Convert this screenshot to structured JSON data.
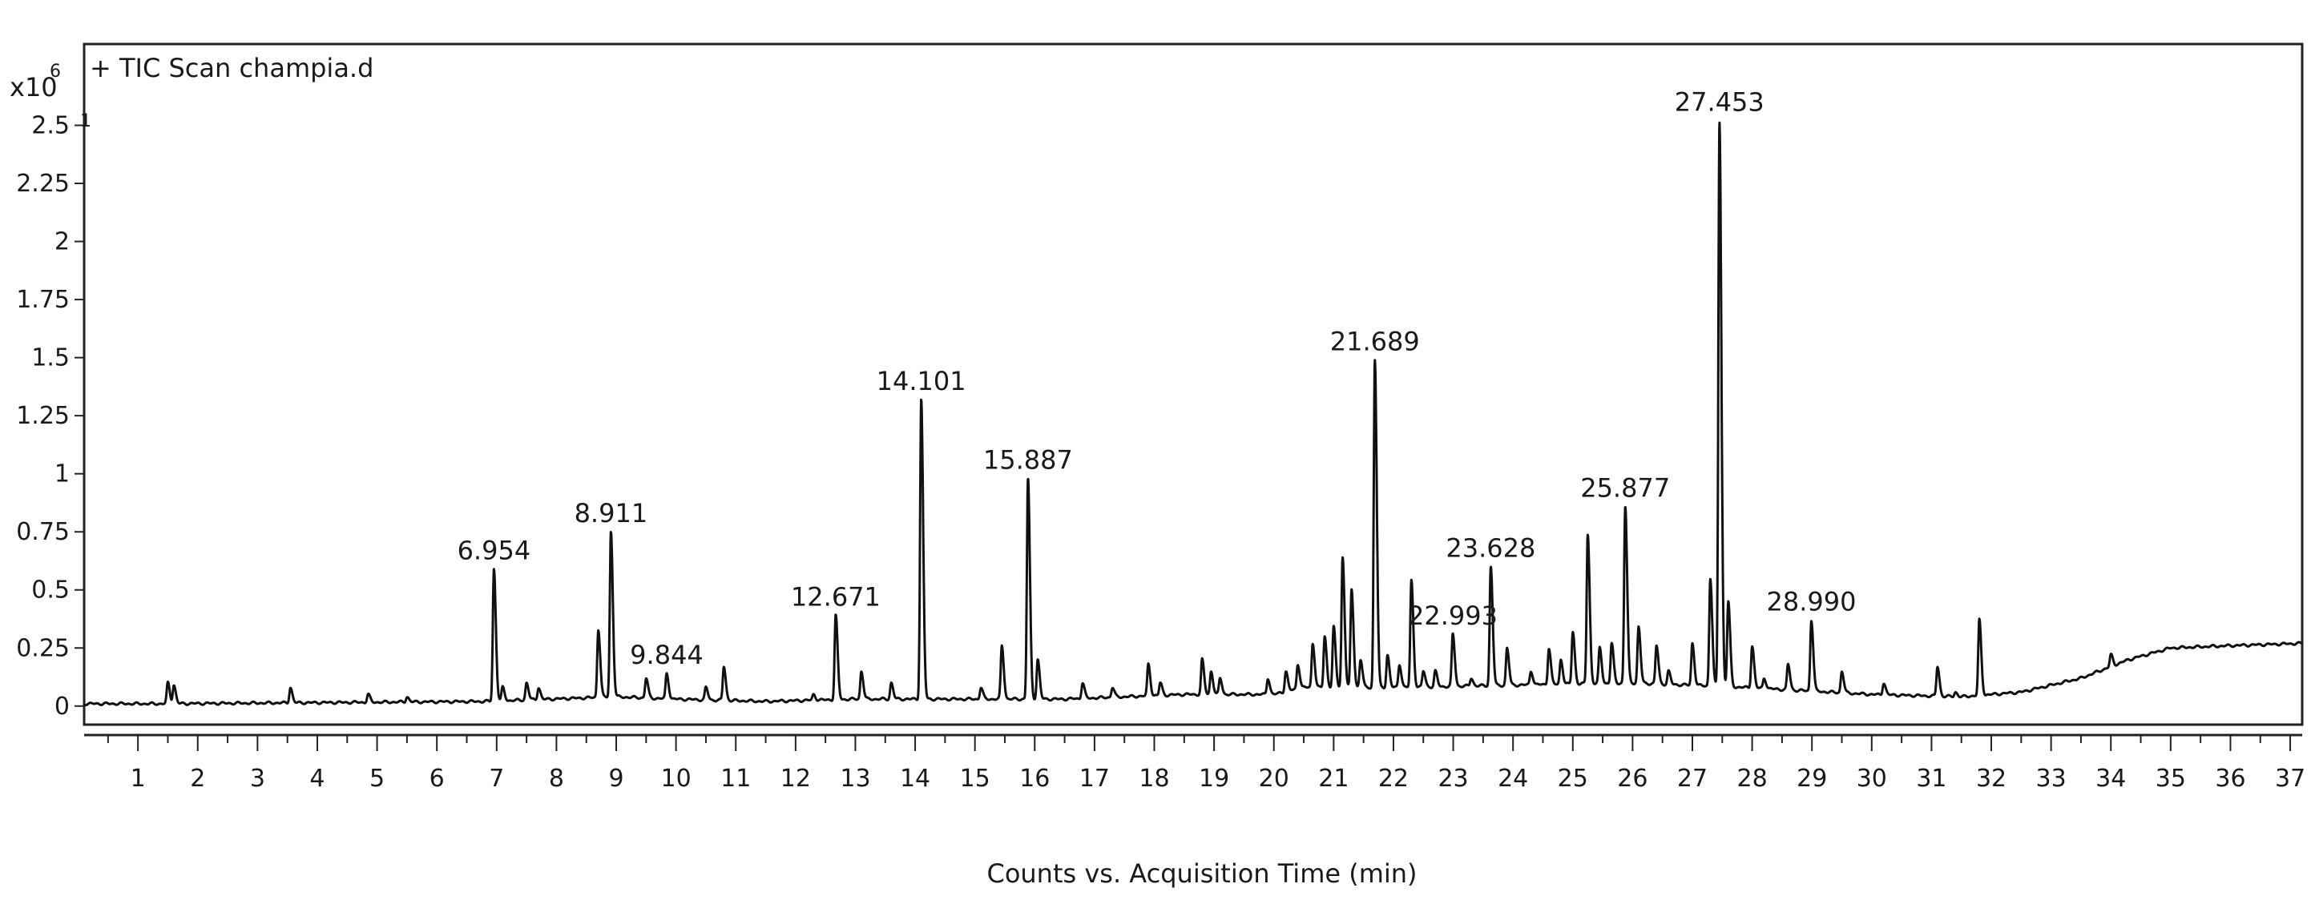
{
  "chart_data": {
    "type": "line",
    "title": "+ TIC Scan champia.d",
    "xlabel": "Counts vs. Acquisition Time (min)",
    "y_multiplier": {
      "base": "x10",
      "exponent": "6",
      "sub": "1"
    },
    "xlim": [
      0.1,
      37.2
    ],
    "ylim": [
      -0.08,
      2.85
    ],
    "x_ticks": [
      1,
      2,
      3,
      4,
      5,
      6,
      7,
      8,
      9,
      10,
      11,
      12,
      13,
      14,
      15,
      16,
      17,
      18,
      19,
      20,
      21,
      22,
      23,
      24,
      25,
      26,
      27,
      28,
      29,
      30,
      31,
      32,
      33,
      34,
      35,
      36,
      37
    ],
    "y_ticks": [
      0,
      0.25,
      0.5,
      0.75,
      1,
      1.25,
      1.5,
      1.75,
      2,
      2.25,
      2.5
    ],
    "y_tick_labels": [
      "0",
      "0.25",
      "0.5",
      "0.75",
      "1",
      "1.25",
      "1.5",
      "1.75",
      "2",
      "2.25",
      "2.5"
    ],
    "baseline": [
      [
        0.1,
        0.01
      ],
      [
        1.4,
        0.01
      ],
      [
        6.8,
        0.02
      ],
      [
        9.0,
        0.04
      ],
      [
        10.0,
        0.03
      ],
      [
        11.5,
        0.02
      ],
      [
        13.0,
        0.03
      ],
      [
        16.5,
        0.03
      ],
      [
        18.5,
        0.05
      ],
      [
        20.0,
        0.05
      ],
      [
        20.5,
        0.08
      ],
      [
        22.0,
        0.08
      ],
      [
        24.0,
        0.09
      ],
      [
        26.0,
        0.1
      ],
      [
        27.9,
        0.08
      ],
      [
        30.0,
        0.05
      ],
      [
        31.5,
        0.04
      ],
      [
        32.5,
        0.06
      ],
      [
        33.5,
        0.12
      ],
      [
        34.3,
        0.2
      ],
      [
        35.0,
        0.25
      ],
      [
        36.0,
        0.26
      ],
      [
        37.2,
        0.27
      ]
    ],
    "peaks": [
      {
        "t": 1.5,
        "h": 0.1
      },
      {
        "t": 1.6,
        "h": 0.09
      },
      {
        "t": 3.55,
        "h": 0.08
      },
      {
        "t": 4.85,
        "h": 0.05
      },
      {
        "t": 5.5,
        "h": 0.04
      },
      {
        "t": 6.954,
        "h": 0.59
      },
      {
        "t": 7.1,
        "h": 0.08
      },
      {
        "t": 7.5,
        "h": 0.1
      },
      {
        "t": 7.7,
        "h": 0.08
      },
      {
        "t": 8.7,
        "h": 0.33
      },
      {
        "t": 8.911,
        "h": 0.75
      },
      {
        "t": 9.5,
        "h": 0.12
      },
      {
        "t": 9.844,
        "h": 0.14
      },
      {
        "t": 10.5,
        "h": 0.08
      },
      {
        "t": 10.8,
        "h": 0.17
      },
      {
        "t": 12.3,
        "h": 0.05
      },
      {
        "t": 12.671,
        "h": 0.39
      },
      {
        "t": 13.1,
        "h": 0.15
      },
      {
        "t": 13.6,
        "h": 0.1
      },
      {
        "t": 14.101,
        "h": 1.32
      },
      {
        "t": 15.1,
        "h": 0.08
      },
      {
        "t": 15.45,
        "h": 0.26
      },
      {
        "t": 15.887,
        "h": 0.98
      },
      {
        "t": 16.05,
        "h": 0.2
      },
      {
        "t": 16.8,
        "h": 0.1
      },
      {
        "t": 17.3,
        "h": 0.08
      },
      {
        "t": 17.9,
        "h": 0.18
      },
      {
        "t": 18.1,
        "h": 0.1
      },
      {
        "t": 18.8,
        "h": 0.2
      },
      {
        "t": 18.95,
        "h": 0.15
      },
      {
        "t": 19.1,
        "h": 0.12
      },
      {
        "t": 19.9,
        "h": 0.12
      },
      {
        "t": 20.2,
        "h": 0.15
      },
      {
        "t": 20.4,
        "h": 0.18
      },
      {
        "t": 20.65,
        "h": 0.27
      },
      {
        "t": 20.85,
        "h": 0.3
      },
      {
        "t": 21.0,
        "h": 0.34
      },
      {
        "t": 21.15,
        "h": 0.64
      },
      {
        "t": 21.3,
        "h": 0.5
      },
      {
        "t": 21.45,
        "h": 0.2
      },
      {
        "t": 21.689,
        "h": 1.49
      },
      {
        "t": 21.9,
        "h": 0.22
      },
      {
        "t": 22.1,
        "h": 0.18
      },
      {
        "t": 22.3,
        "h": 0.54
      },
      {
        "t": 22.5,
        "h": 0.15
      },
      {
        "t": 22.7,
        "h": 0.15
      },
      {
        "t": 22.993,
        "h": 0.31
      },
      {
        "t": 23.3,
        "h": 0.12
      },
      {
        "t": 23.628,
        "h": 0.6
      },
      {
        "t": 23.9,
        "h": 0.25
      },
      {
        "t": 24.3,
        "h": 0.15
      },
      {
        "t": 24.6,
        "h": 0.25
      },
      {
        "t": 24.8,
        "h": 0.2
      },
      {
        "t": 25.0,
        "h": 0.32
      },
      {
        "t": 25.25,
        "h": 0.74
      },
      {
        "t": 25.45,
        "h": 0.25
      },
      {
        "t": 25.65,
        "h": 0.27
      },
      {
        "t": 25.877,
        "h": 0.86
      },
      {
        "t": 26.1,
        "h": 0.34
      },
      {
        "t": 26.4,
        "h": 0.26
      },
      {
        "t": 26.6,
        "h": 0.15
      },
      {
        "t": 27.0,
        "h": 0.27
      },
      {
        "t": 27.3,
        "h": 0.55
      },
      {
        "t": 27.453,
        "h": 2.52
      },
      {
        "t": 27.6,
        "h": 0.45
      },
      {
        "t": 28.0,
        "h": 0.26
      },
      {
        "t": 28.2,
        "h": 0.12
      },
      {
        "t": 28.6,
        "h": 0.18
      },
      {
        "t": 28.99,
        "h": 0.37
      },
      {
        "t": 29.5,
        "h": 0.15
      },
      {
        "t": 30.2,
        "h": 0.1
      },
      {
        "t": 31.1,
        "h": 0.17
      },
      {
        "t": 31.4,
        "h": 0.06
      },
      {
        "t": 31.8,
        "h": 0.37
      },
      {
        "t": 34.0,
        "h": 0.22
      }
    ],
    "peak_labels": [
      {
        "t": 6.954,
        "h": 0.59,
        "text": "6.954"
      },
      {
        "t": 8.911,
        "h": 0.75,
        "text": "8.911"
      },
      {
        "t": 9.844,
        "h": 0.14,
        "text": "9.844"
      },
      {
        "t": 12.671,
        "h": 0.39,
        "text": "12.671"
      },
      {
        "t": 14.101,
        "h": 1.32,
        "text": "14.101"
      },
      {
        "t": 15.887,
        "h": 0.98,
        "text": "15.887"
      },
      {
        "t": 21.689,
        "h": 1.49,
        "text": "21.689"
      },
      {
        "t": 22.993,
        "h": 0.31,
        "text": "22.993"
      },
      {
        "t": 23.628,
        "h": 0.6,
        "text": "23.628"
      },
      {
        "t": 25.877,
        "h": 0.86,
        "text": "25.877"
      },
      {
        "t": 27.453,
        "h": 2.52,
        "text": "27.453"
      },
      {
        "t": 28.99,
        "h": 0.37,
        "text": "28.990"
      }
    ],
    "colors": {
      "trace": "#111111",
      "frame": "#222222",
      "background": "#ffffff"
    },
    "grid": false,
    "legend": "none"
  }
}
